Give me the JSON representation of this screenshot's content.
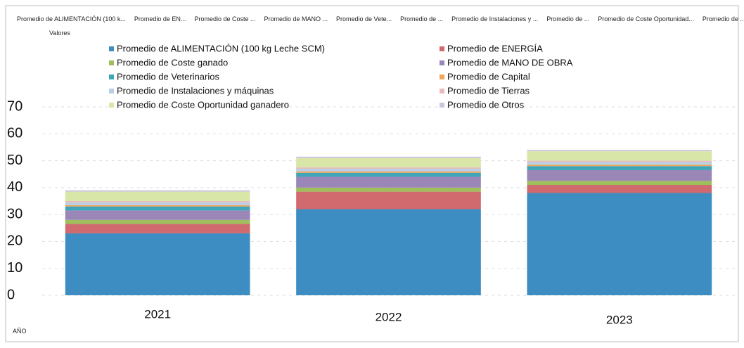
{
  "chart_data": {
    "type": "stacked_bar",
    "field_buttons": [
      "Promedio de ALIMENTACIÓN (100 k...",
      "Promedio de EN...",
      "Promedio de Coste ...",
      "Promedio de MANO ...",
      "Promedio de Vete...",
      "Promedio de ...",
      "Promedio de Instalaciones y ...",
      "Promedio de ...",
      "Promedio de Coste Oportunidad...",
      "Promedio de ..."
    ],
    "values_field": "Valores",
    "axis_field": "AÑO",
    "categories": [
      "2021",
      "2022",
      "2023"
    ],
    "ylim": [
      0,
      70
    ],
    "yticks": [
      0,
      10,
      20,
      30,
      40,
      50,
      60,
      70
    ],
    "grid": true,
    "series": [
      {
        "name": "Promedio de ALIMENTACIÓN (100 kg Leche SCM)",
        "color": "#3d8dc2",
        "values": [
          23,
          32,
          38
        ]
      },
      {
        "name": "Promedio de ENERGÍA",
        "color": "#d06a6e",
        "values": [
          3.5,
          6.5,
          3
        ]
      },
      {
        "name": "Promedio de Coste ganado",
        "color": "#9fbf5c",
        "values": [
          1.5,
          1.5,
          1.5
        ]
      },
      {
        "name": "Promedio de MANO DE OBRA",
        "color": "#9b86b8",
        "values": [
          3.5,
          4,
          4
        ]
      },
      {
        "name": "Promedio de Veterinarios",
        "color": "#3ea6b8",
        "values": [
          1.5,
          1.5,
          1.5
        ]
      },
      {
        "name": "Promedio de Capital",
        "color": "#f0a35a",
        "values": [
          0.5,
          0.5,
          0.5
        ]
      },
      {
        "name": "Promedio de Instalaciones y máquinas",
        "color": "#b9cfe6",
        "values": [
          1,
          1,
          1
        ]
      },
      {
        "name": "Promedio de Tierras",
        "color": "#e8bcbc",
        "values": [
          0.5,
          0.5,
          0.5
        ]
      },
      {
        "name": "Promedio de Coste Oportunidad ganadero",
        "color": "#d8e6a8",
        "values": [
          3.5,
          3.5,
          3.5
        ]
      },
      {
        "name": "Promedio de Otros",
        "color": "#cec4de",
        "values": [
          0.5,
          0.5,
          0.5
        ]
      }
    ]
  }
}
